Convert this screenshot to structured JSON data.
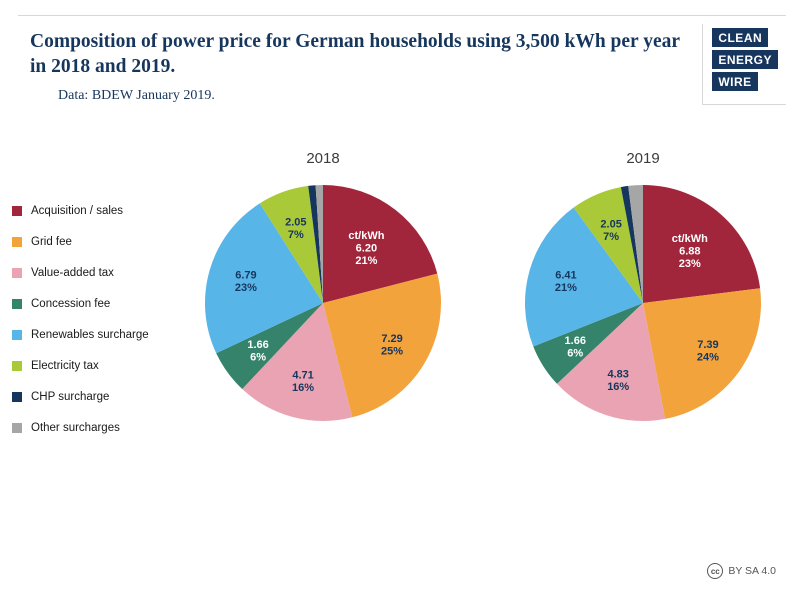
{
  "header": {
    "title": "Composition of power price for German households using 3,500 kWh per year in 2018 and 2019.",
    "subtitle": "Data: BDEW January 2019.",
    "logo_lines": [
      "CLEAN",
      "ENERGY",
      "WIRE"
    ],
    "logo_color": "#17365d"
  },
  "footer": {
    "cc_mark": "cc",
    "license": "BY SA 4.0"
  },
  "chart_data": {
    "type": "pie",
    "unit": "ct/kWh",
    "legend_position": "left",
    "categories": [
      "Acquisition / sales",
      "Grid fee",
      "Value-added tax",
      "Concession fee",
      "Renewables surcharge",
      "Electricity tax",
      "CHP surcharge",
      "Other surcharges"
    ],
    "colors": [
      "#a2263b",
      "#f2a33c",
      "#e9a3b2",
      "#35836b",
      "#58b5e8",
      "#a9c938",
      "#17365d",
      "#a6a6a6"
    ],
    "label_text_colors": [
      "#ffffff",
      "#17365d",
      "#17365d",
      "#ffffff",
      "#17365d",
      "#17365d",
      null,
      null
    ],
    "charts": [
      {
        "title": "2018",
        "values_ct_kwh": [
          6.2,
          7.29,
          4.71,
          1.66,
          6.79,
          2.05,
          null,
          null
        ],
        "percent": [
          21,
          25,
          16,
          6,
          23,
          7,
          1,
          1
        ],
        "labels": [
          [
            "ct/kWh",
            "6.20",
            "21%"
          ],
          [
            "7.29",
            "25%"
          ],
          [
            "4.71",
            "16%"
          ],
          [
            "1.66",
            "6%"
          ],
          [
            "6.79",
            "23%"
          ],
          [
            "2.05",
            "7%"
          ],
          [],
          []
        ]
      },
      {
        "title": "2019",
        "values_ct_kwh": [
          6.88,
          7.39,
          4.83,
          1.66,
          6.41,
          2.05,
          null,
          null
        ],
        "percent": [
          23,
          24,
          16,
          6,
          21,
          7,
          1,
          2
        ],
        "labels": [
          [
            "ct/kWh",
            "6.88",
            "23%"
          ],
          [
            "7.39",
            "24%"
          ],
          [
            "4.83",
            "16%"
          ],
          [
            "1.66",
            "6%"
          ],
          [
            "6.41",
            "21%"
          ],
          [
            "2.05",
            "7%"
          ],
          [],
          []
        ]
      }
    ]
  }
}
